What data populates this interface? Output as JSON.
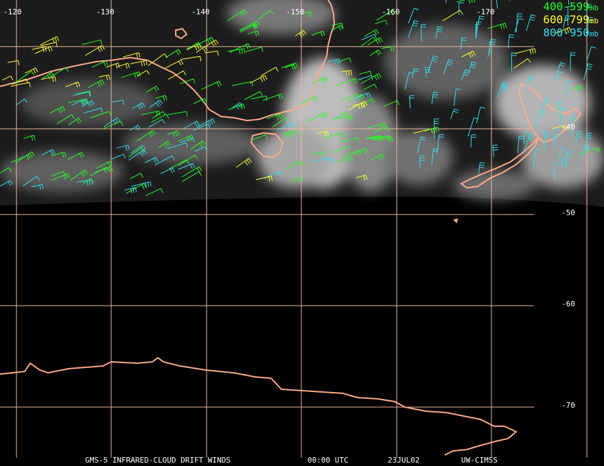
{
  "map": {
    "longitude_labels": [
      "-120",
      "-130",
      "-140",
      "-150",
      "-160",
      "-170"
    ],
    "latitude_labels": [
      "-40",
      "-50",
      "-60",
      "-70"
    ],
    "colors": {
      "grid": "#f2b89a",
      "coast": "#ffaa88",
      "background": "#000000",
      "label": "#ffffff"
    }
  },
  "legend": [
    {
      "range": "400-599",
      "unit": "mb",
      "color": "#22ff22"
    },
    {
      "range": "600-799",
      "unit": "mb",
      "color": "#ffff33"
    },
    {
      "range": "800-950",
      "unit": "mb",
      "color": "#33ddee"
    }
  ],
  "footer": {
    "product": "GMS-5 INFRARED-CLOUD DRIFT WINDS",
    "time": "00:00 UTC",
    "date": "23JUL02",
    "source": "UW-CIMSS"
  }
}
